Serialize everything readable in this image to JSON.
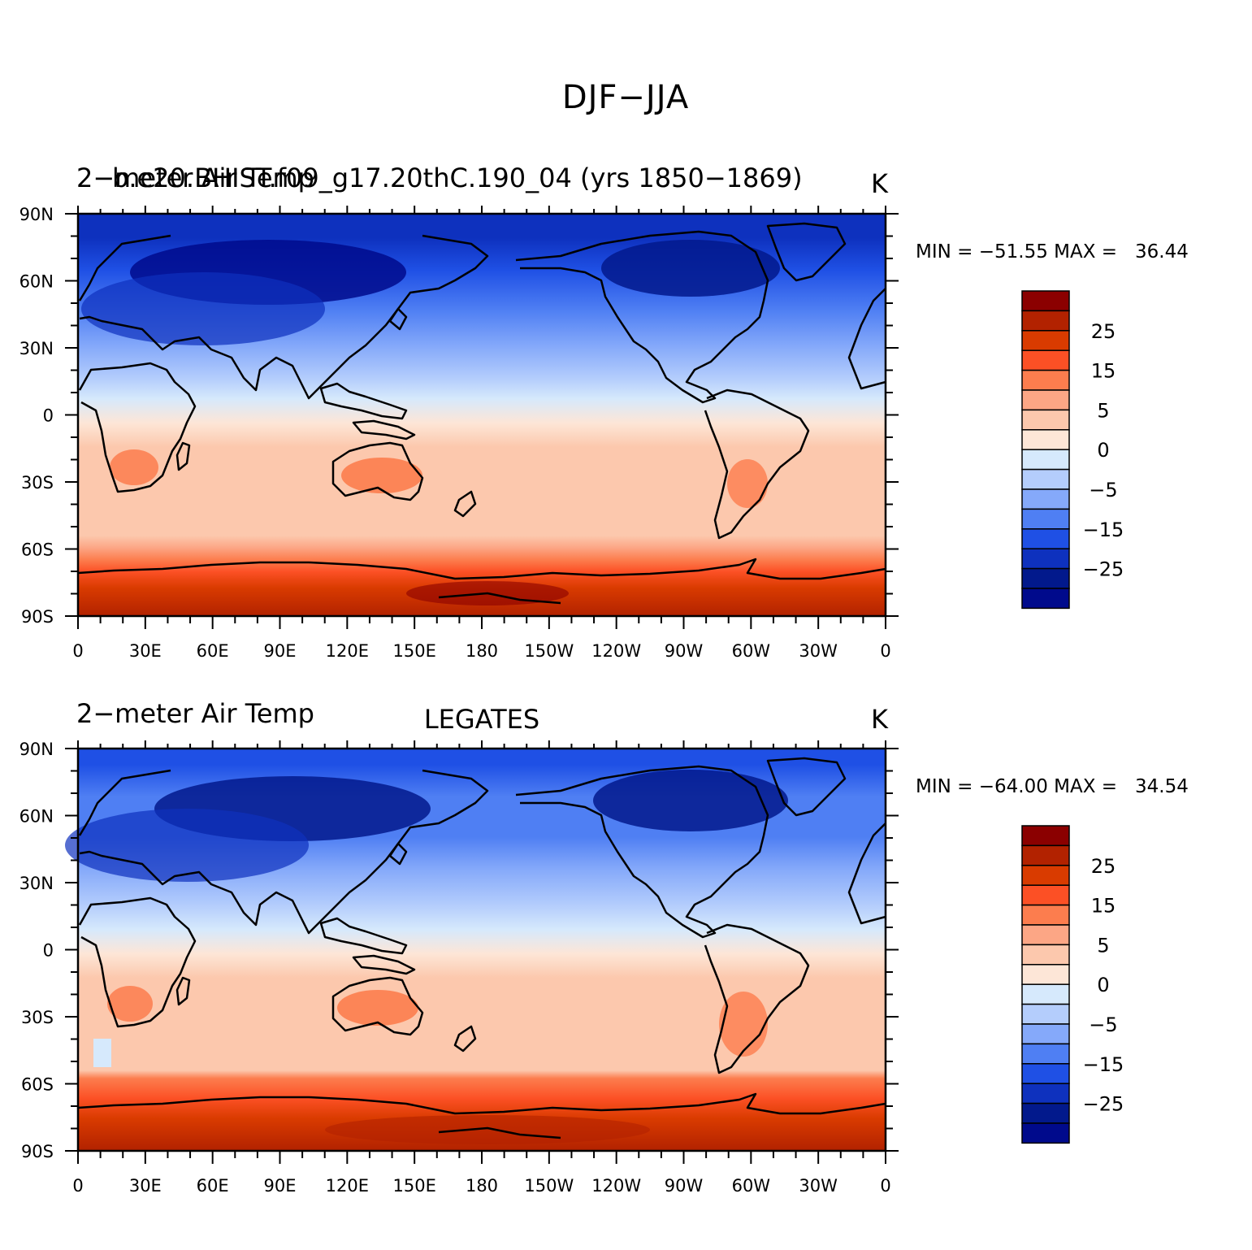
{
  "title": "DJF−JJA",
  "panels": [
    {
      "left_title": "2−meter Air Temp",
      "overlay_title": "b.e20.BHIST.f09_g17.20thC.190_04 (yrs 1850−1869)",
      "center_title": "",
      "units": "K",
      "min_max": "MIN = −51.55 MAX =   36.44"
    },
    {
      "left_title": "2−meter Air Temp",
      "overlay_title": "",
      "center_title": "LEGATES",
      "units": "K",
      "min_max": "MIN = −64.00 MAX =   34.54"
    }
  ],
  "axes": {
    "lat_labels": [
      "90N",
      "60N",
      "30N",
      "0",
      "30S",
      "60S",
      "90S"
    ],
    "lon_labels": [
      "0",
      "30E",
      "60E",
      "90E",
      "120E",
      "150E",
      "180",
      "150W",
      "120W",
      "90W",
      "60W",
      "30W",
      "0"
    ]
  },
  "colorbar": {
    "labels": [
      "25",
      "15",
      "5",
      "0",
      "−5",
      "−15",
      "−25"
    ],
    "colors": [
      "#8b0000",
      "#b22200",
      "#d93b00",
      "#fc5025",
      "#fc7d4e",
      "#fca685",
      "#fcc8ad",
      "#fde6d7",
      "#d6e9fc",
      "#b4cdfc",
      "#85a9fa",
      "#4f7ff3",
      "#1f50e5",
      "#0e31be",
      "#02198c",
      "#000a8c"
    ]
  }
}
